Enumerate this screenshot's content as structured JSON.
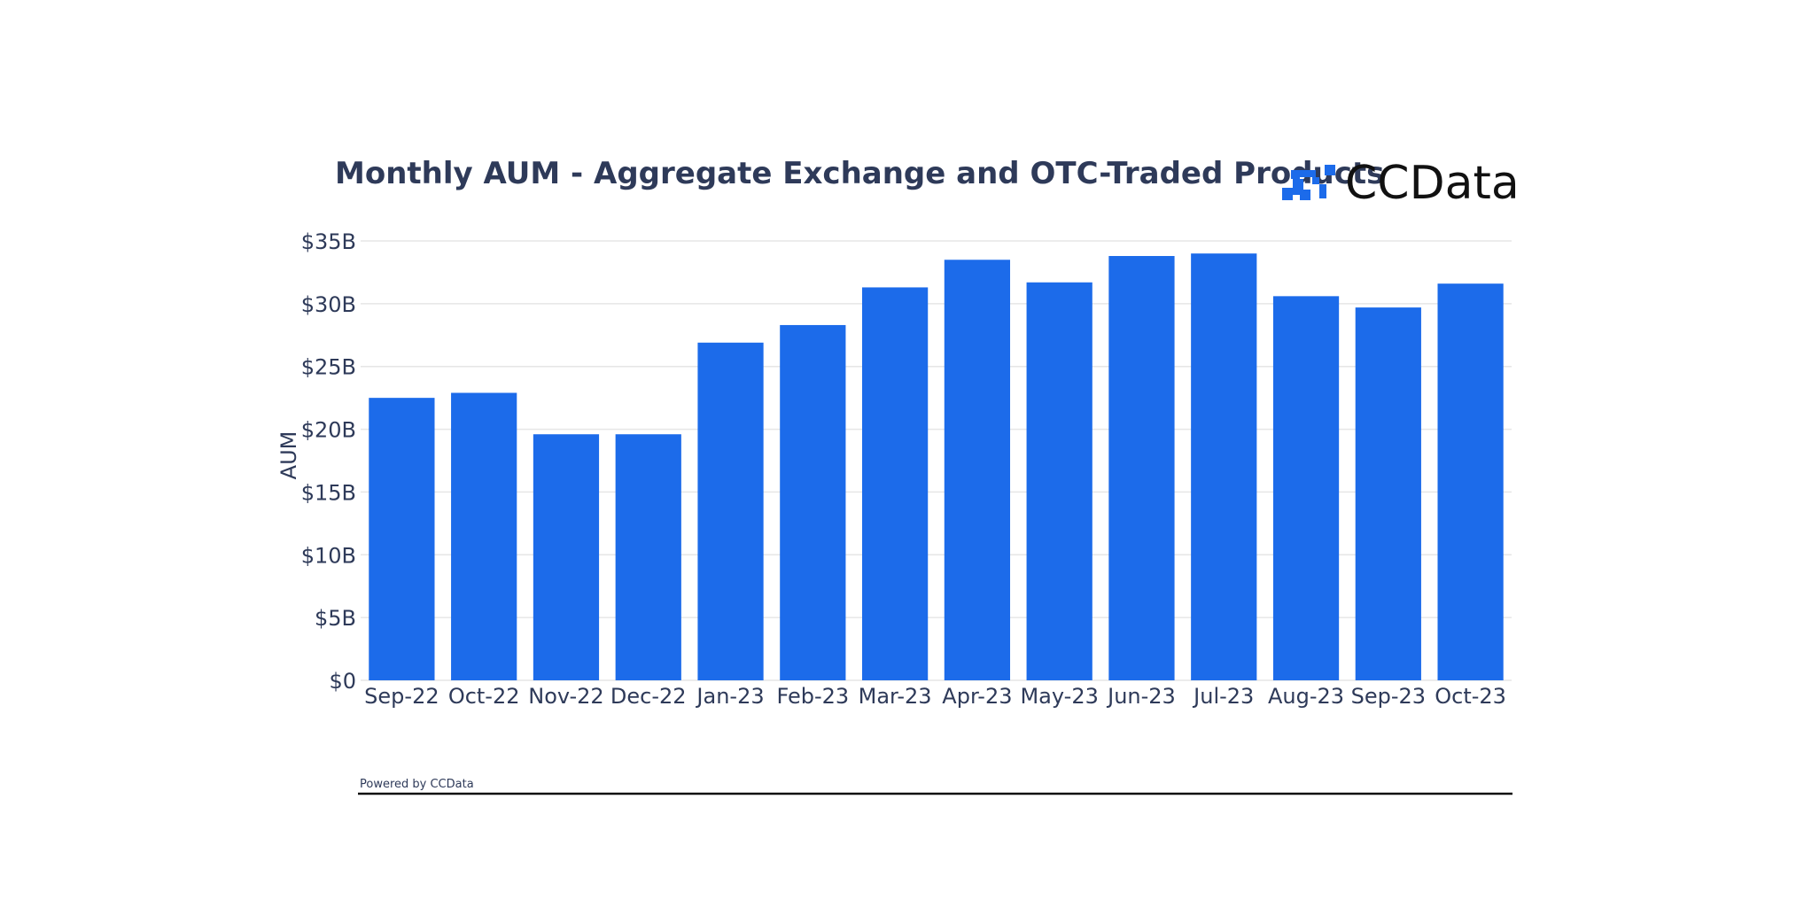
{
  "header": {
    "brand": "CCData"
  },
  "footer": {
    "text": "Powered by CCData"
  },
  "colors": {
    "bar": "#1c6bea",
    "text": "#2e3a59",
    "logo": "#1c6bea"
  },
  "chart_data": {
    "type": "bar",
    "title": "Monthly AUM - Aggregate Exchange and OTC-Traded Products",
    "xlabel": "",
    "ylabel": "AUM",
    "categories": [
      "Sep-22",
      "Oct-22",
      "Nov-22",
      "Dec-22",
      "Jan-23",
      "Feb-23",
      "Mar-23",
      "Apr-23",
      "May-23",
      "Jun-23",
      "Jul-23",
      "Aug-23",
      "Sep-23",
      "Oct-23"
    ],
    "series": [
      {
        "values": [
          22.5,
          22.9,
          19.6,
          19.6,
          26.9,
          28.3,
          31.3,
          33.5,
          31.7,
          33.8,
          34.0,
          30.6,
          29.7,
          31.6
        ]
      }
    ],
    "ylim": [
      0,
      35
    ],
    "yticks": [
      {
        "value": 0,
        "label": "$0"
      },
      {
        "value": 5,
        "label": "$5B"
      },
      {
        "value": 10,
        "label": "$10B"
      },
      {
        "value": 15,
        "label": "$15B"
      },
      {
        "value": 20,
        "label": "$20B"
      },
      {
        "value": 25,
        "label": "$25B"
      },
      {
        "value": 30,
        "label": "$30B"
      },
      {
        "value": 35,
        "label": "$35B"
      }
    ],
    "grid": true,
    "legend": "none"
  }
}
